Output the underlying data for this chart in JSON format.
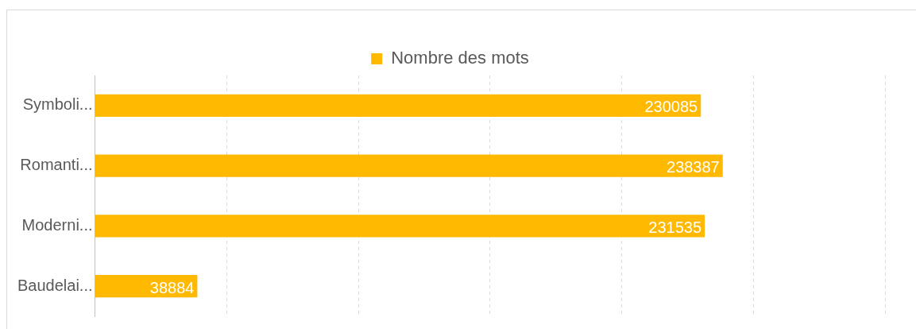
{
  "chart_data": {
    "type": "bar",
    "orientation": "horizontal",
    "categories": [
      "Symboli...",
      "Romanti...",
      "Moderni...",
      "Baudelai..."
    ],
    "series": [
      {
        "name": "Nombre des mots",
        "color": "#ffb900",
        "values": [
          230085,
          238387,
          231535,
          38884
        ]
      }
    ],
    "xlim": [
      0,
      300000
    ],
    "xticks": [
      {
        "value": 0,
        "label": null
      },
      {
        "value": 50000,
        "label": null
      },
      {
        "value": 100000,
        "label": null
      },
      {
        "value": 150000,
        "label": null
      },
      {
        "value": 200000,
        "label": null
      },
      {
        "value": 250000,
        "label": null
      },
      {
        "value": 300000,
        "label": null
      }
    ],
    "tick_labels": "y",
    "grid": "x",
    "legend": "top",
    "data_labels": true
  }
}
